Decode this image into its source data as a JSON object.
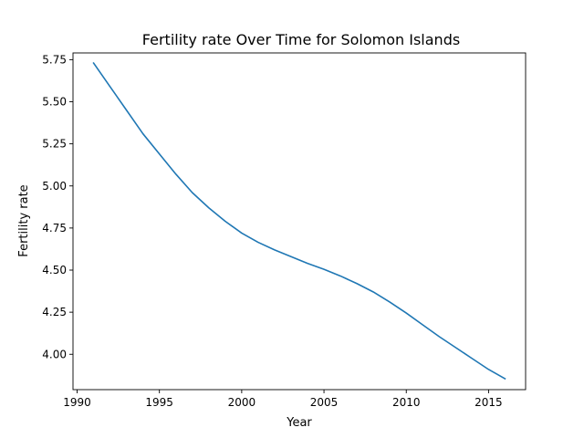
{
  "chart_data": {
    "type": "line",
    "title": "Fertility rate Over Time for Solomon Islands",
    "xlabel": "Year",
    "ylabel": "Fertility rate",
    "xlim": [
      1989.75,
      2017.25
    ],
    "ylim": [
      3.79,
      5.79
    ],
    "xticks": [
      1990,
      1995,
      2000,
      2005,
      2010,
      2015
    ],
    "xtick_labels": [
      "1990",
      "1995",
      "2000",
      "2005",
      "2010",
      "2015"
    ],
    "yticks": [
      4.0,
      4.25,
      4.5,
      4.75,
      5.0,
      5.25,
      5.5,
      5.75
    ],
    "ytick_labels": [
      "4.00",
      "4.25",
      "4.50",
      "4.75",
      "5.00",
      "5.25",
      "5.50",
      "5.75"
    ],
    "grid": false,
    "series": [
      {
        "color": "#1f77b4",
        "x": [
          1991,
          1992,
          1993,
          1994,
          1995,
          1996,
          1997,
          1998,
          1999,
          2000,
          2001,
          2002,
          2003,
          2004,
          2005,
          2006,
          2007,
          2008,
          2009,
          2010,
          2011,
          2012,
          2013,
          2014,
          2015,
          2016
        ],
        "y": [
          5.73,
          5.59,
          5.45,
          5.31,
          5.19,
          5.07,
          4.96,
          4.87,
          4.79,
          4.72,
          4.665,
          4.62,
          4.58,
          4.54,
          4.505,
          4.465,
          4.42,
          4.37,
          4.31,
          4.245,
          4.175,
          4.105,
          4.04,
          3.975,
          3.91,
          3.855
        ]
      }
    ]
  }
}
